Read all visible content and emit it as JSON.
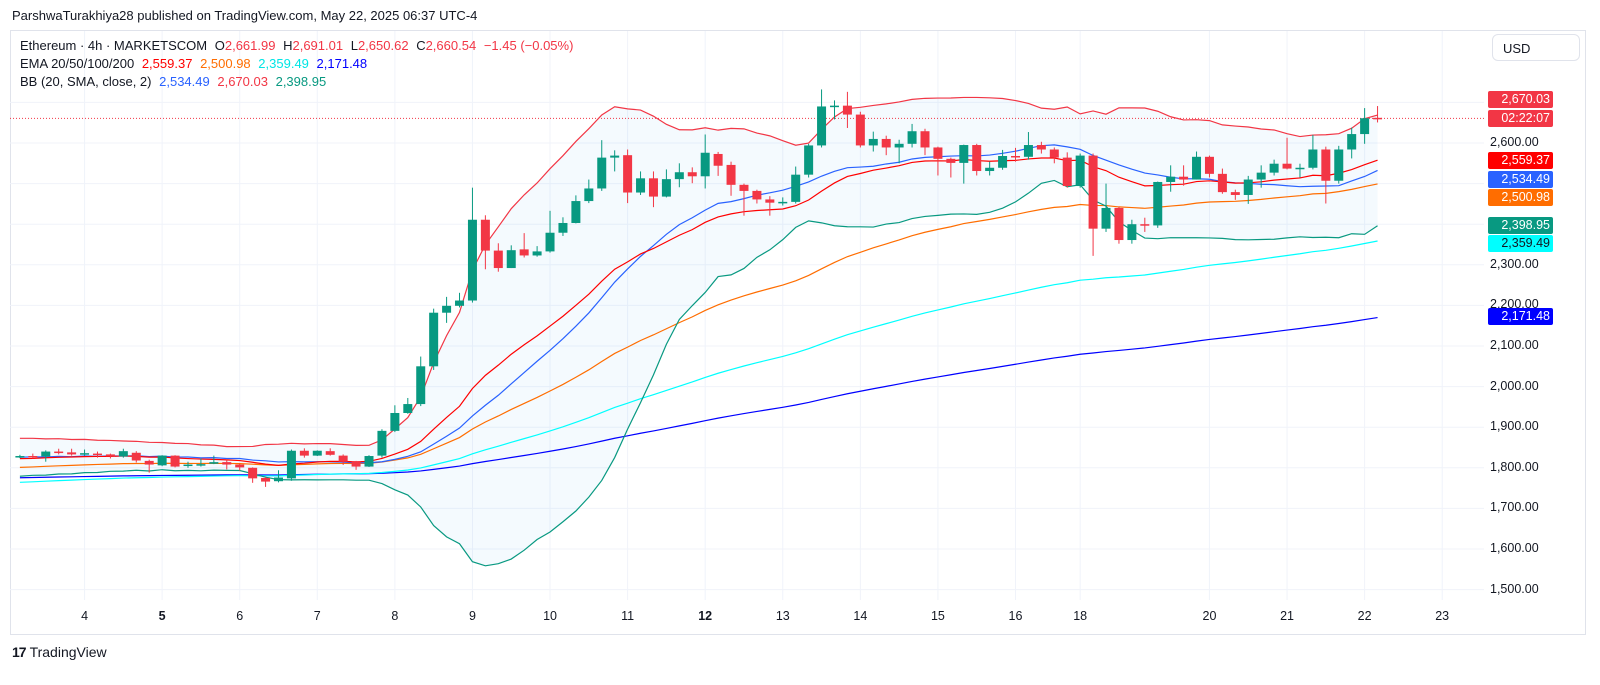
{
  "header": {
    "published": "ParshwaTurakhiya28 published on TradingView.com, May 22, 2025 06:37 UTC-4"
  },
  "legend": {
    "symbol": "Ethereum · 4h · MARKETSCOM",
    "o_label": "O",
    "o_value": "2,661.99",
    "h_label": "H",
    "h_value": "2,691.01",
    "l_label": "L",
    "l_value": "2,650.62",
    "c_label": "C",
    "c_value": "2,660.54",
    "change": "−1.45 (−0.05%)",
    "ema_label": "EMA 20/50/100/200",
    "ema_values": [
      "2,559.37",
      "2,500.98",
      "2,359.49",
      "2,171.48"
    ],
    "bb_label": "BB (20, SMA, close, 2)",
    "bb_values": [
      "2,534.49",
      "2,670.03",
      "2,398.95"
    ]
  },
  "currency_button": "USD",
  "branding": {
    "logo_text": "TradingView"
  },
  "colors": {
    "up": "#089981",
    "down": "#f23645",
    "ema20": "#ff0000",
    "ema50": "#ff6d00",
    "ema100": "#00ffff",
    "ema200": "#0000ff",
    "bb_basis": "#2962ff",
    "bb_upper": "#f23645",
    "bb_lower": "#089981"
  },
  "price_tags": [
    {
      "text": "2,670.03",
      "bg": "#f23645",
      "fg": "#ffffff"
    },
    {
      "text": "02:22:07",
      "bg": "#f23645",
      "fg": "#ffffff"
    },
    {
      "text": "2,559.37",
      "bg": "#ff0000",
      "fg": "#ffffff"
    },
    {
      "text": "2,534.49",
      "bg": "#2962ff",
      "fg": "#ffffff"
    },
    {
      "text": "2,500.98",
      "bg": "#ff6d00",
      "fg": "#ffffff"
    },
    {
      "text": "2,398.95",
      "bg": "#089981",
      "fg": "#ffffff"
    },
    {
      "text": "2,359.49",
      "bg": "#00ffff",
      "fg": "#131722"
    },
    {
      "text": "2,171.48",
      "bg": "#0000ff",
      "fg": "#ffffff"
    }
  ],
  "chart_data": {
    "type": "candlestick",
    "title": "Ethereum · 4h · MARKETSCOM",
    "ylim": [
      1480,
      2760
    ],
    "grid": true,
    "current_price": 2660.54,
    "y_ticks": [
      "2,600.00",
      "2,300.00",
      "2,200.00",
      "2,100.00",
      "2,000.00",
      "1,900.00",
      "1,800.00",
      "1,700.00",
      "1,600.00",
      "1,500.00"
    ],
    "y_tick_values": [
      2600,
      2300,
      2200,
      2100,
      2000,
      1900,
      1800,
      1700,
      1600,
      1500
    ],
    "x_ticks": [
      {
        "label": "4",
        "candle": 5,
        "bold": false
      },
      {
        "label": "5",
        "candle": 11,
        "bold": true
      },
      {
        "label": "6",
        "candle": 17,
        "bold": false
      },
      {
        "label": "7",
        "candle": 23,
        "bold": false
      },
      {
        "label": "8",
        "candle": 29,
        "bold": false
      },
      {
        "label": "9",
        "candle": 35,
        "bold": false
      },
      {
        "label": "10",
        "candle": 41,
        "bold": false
      },
      {
        "label": "11",
        "candle": 47,
        "bold": false
      },
      {
        "label": "12",
        "candle": 53,
        "bold": true
      },
      {
        "label": "13",
        "candle": 59,
        "bold": false
      },
      {
        "label": "14",
        "candle": 65,
        "bold": false
      },
      {
        "label": "15",
        "candle": 71,
        "bold": false
      },
      {
        "label": "16",
        "candle": 77,
        "bold": false
      },
      {
        "label": "18",
        "candle": 82,
        "bold": false
      },
      {
        "label": "20",
        "candle": 92,
        "bold": false
      },
      {
        "label": "21",
        "candle": 98,
        "bold": false
      },
      {
        "label": "22",
        "candle": 104,
        "bold": false
      },
      {
        "label": "23",
        "candle": 110,
        "bold": false
      }
    ],
    "ohlc_columns": [
      "open",
      "high",
      "low",
      "close"
    ],
    "candles": [
      [
        1826,
        1832,
        1824,
        1829
      ],
      [
        1829,
        1835,
        1823,
        1827
      ],
      [
        1828,
        1843,
        1815,
        1840
      ],
      [
        1840,
        1847,
        1833,
        1837
      ],
      [
        1838,
        1847,
        1830,
        1833
      ],
      [
        1834,
        1845,
        1830,
        1836
      ],
      [
        1835,
        1840,
        1825,
        1833
      ],
      [
        1833,
        1835,
        1823,
        1828
      ],
      [
        1828,
        1847,
        1825,
        1841
      ],
      [
        1837,
        1841,
        1813,
        1818
      ],
      [
        1817,
        1820,
        1788,
        1808
      ],
      [
        1806,
        1831,
        1804,
        1830
      ],
      [
        1830,
        1831,
        1801,
        1803
      ],
      [
        1807,
        1815,
        1800,
        1808
      ],
      [
        1808,
        1823,
        1803,
        1809
      ],
      [
        1810,
        1830,
        1809,
        1814
      ],
      [
        1814,
        1820,
        1796,
        1808
      ],
      [
        1808,
        1810,
        1793,
        1801
      ],
      [
        1800,
        1801,
        1763,
        1774
      ],
      [
        1775,
        1778,
        1753,
        1766
      ],
      [
        1767,
        1794,
        1764,
        1776
      ],
      [
        1774,
        1845,
        1768,
        1842
      ],
      [
        1842,
        1848,
        1825,
        1830
      ],
      [
        1830,
        1843,
        1829,
        1842
      ],
      [
        1841,
        1848,
        1830,
        1832
      ],
      [
        1830,
        1833,
        1807,
        1815
      ],
      [
        1816,
        1817,
        1795,
        1803
      ],
      [
        1803,
        1831,
        1802,
        1829
      ],
      [
        1830,
        1895,
        1825,
        1891
      ],
      [
        1891,
        1954,
        1888,
        1935
      ],
      [
        1935,
        1972,
        1933,
        1957
      ],
      [
        1957,
        2074,
        1952,
        2050
      ],
      [
        2050,
        2192,
        2041,
        2182
      ],
      [
        2182,
        2221,
        2157,
        2199
      ],
      [
        2199,
        2231,
        2195,
        2212
      ],
      [
        2212,
        2490,
        2207,
        2411
      ],
      [
        2411,
        2422,
        2289,
        2335
      ],
      [
        2335,
        2353,
        2283,
        2292
      ],
      [
        2292,
        2348,
        2292,
        2336
      ],
      [
        2338,
        2378,
        2318,
        2323
      ],
      [
        2323,
        2346,
        2320,
        2333
      ],
      [
        2333,
        2433,
        2330,
        2379
      ],
      [
        2379,
        2417,
        2371,
        2403
      ],
      [
        2403,
        2471,
        2402,
        2457
      ],
      [
        2457,
        2510,
        2452,
        2488
      ],
      [
        2488,
        2607,
        2482,
        2564
      ],
      [
        2564,
        2582,
        2530,
        2569
      ],
      [
        2570,
        2584,
        2452,
        2478
      ],
      [
        2478,
        2530,
        2472,
        2513
      ],
      [
        2513,
        2530,
        2442,
        2468
      ],
      [
        2468,
        2535,
        2466,
        2511
      ],
      [
        2511,
        2550,
        2491,
        2528
      ],
      [
        2528,
        2540,
        2501,
        2518
      ],
      [
        2518,
        2621,
        2488,
        2576
      ],
      [
        2573,
        2578,
        2519,
        2544
      ],
      [
        2546,
        2554,
        2470,
        2497
      ],
      [
        2497,
        2500,
        2421,
        2482
      ],
      [
        2482,
        2485,
        2451,
        2461
      ],
      [
        2461,
        2469,
        2421,
        2453
      ],
      [
        2453,
        2466,
        2446,
        2455
      ],
      [
        2455,
        2542,
        2451,
        2522
      ],
      [
        2522,
        2598,
        2515,
        2594
      ],
      [
        2594,
        2732,
        2589,
        2690
      ],
      [
        2690,
        2705,
        2658,
        2692
      ],
      [
        2692,
        2726,
        2637,
        2670
      ],
      [
        2670,
        2677,
        2589,
        2594
      ],
      [
        2594,
        2628,
        2579,
        2610
      ],
      [
        2610,
        2618,
        2570,
        2589
      ],
      [
        2589,
        2608,
        2550,
        2598
      ],
      [
        2598,
        2647,
        2589,
        2629
      ],
      [
        2629,
        2635,
        2570,
        2589
      ],
      [
        2589,
        2591,
        2520,
        2561
      ],
      [
        2561,
        2564,
        2515,
        2551
      ],
      [
        2551,
        2596,
        2500,
        2595
      ],
      [
        2595,
        2598,
        2520,
        2531
      ],
      [
        2531,
        2554,
        2520,
        2539
      ],
      [
        2539,
        2583,
        2534,
        2568
      ],
      [
        2568,
        2588,
        2554,
        2566
      ],
      [
        2566,
        2627,
        2559,
        2595
      ],
      [
        2595,
        2603,
        2574,
        2584
      ],
      [
        2584,
        2589,
        2550,
        2564
      ],
      [
        2564,
        2577,
        2490,
        2494
      ],
      [
        2494,
        2574,
        2490,
        2569
      ],
      [
        2569,
        2574,
        2322,
        2389
      ],
      [
        2389,
        2500,
        2381,
        2440
      ],
      [
        2440,
        2443,
        2352,
        2361
      ],
      [
        2361,
        2411,
        2352,
        2400
      ],
      [
        2400,
        2416,
        2381,
        2397
      ],
      [
        2397,
        2505,
        2391,
        2504
      ],
      [
        2504,
        2545,
        2480,
        2517
      ],
      [
        2517,
        2545,
        2495,
        2510
      ],
      [
        2510,
        2579,
        2510,
        2566
      ],
      [
        2566,
        2569,
        2515,
        2524
      ],
      [
        2524,
        2537,
        2475,
        2479
      ],
      [
        2479,
        2485,
        2460,
        2472
      ],
      [
        2472,
        2519,
        2450,
        2510
      ],
      [
        2510,
        2545,
        2490,
        2527
      ],
      [
        2527,
        2559,
        2520,
        2549
      ],
      [
        2549,
        2613,
        2535,
        2537
      ],
      [
        2537,
        2549,
        2515,
        2539
      ],
      [
        2539,
        2620,
        2535,
        2584
      ],
      [
        2584,
        2591,
        2451,
        2507
      ],
      [
        2507,
        2593,
        2500,
        2584
      ],
      [
        2584,
        2638,
        2562,
        2622
      ],
      [
        2622,
        2686,
        2598,
        2661
      ],
      [
        2661.99,
        2691.01,
        2650.62,
        2660.54
      ]
    ],
    "indicators": {
      "ema": [
        {
          "name": "EMA 20",
          "period": 20,
          "last": 2559.37
        },
        {
          "name": "EMA 50",
          "period": 50,
          "last": 2500.98
        },
        {
          "name": "EMA 100",
          "period": 100,
          "last": 2359.49
        },
        {
          "name": "EMA 200",
          "period": 200,
          "last": 2171.48
        }
      ],
      "bollinger": {
        "period": 20,
        "mult": 2,
        "basis_last": 2534.49,
        "upper_last": 2670.03,
        "lower_last": 2398.95
      }
    }
  }
}
